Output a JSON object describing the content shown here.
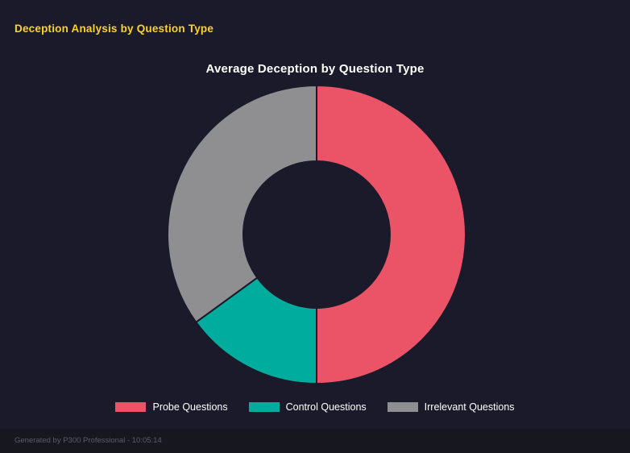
{
  "header": {
    "title": "Deception Analysis by Question Type"
  },
  "chart_data": {
    "type": "pie",
    "variant": "donut",
    "title": "Average Deception by Question Type",
    "labels": [
      "Probe Questions",
      "Control Questions",
      "Irrelevant Questions"
    ],
    "values": [
      50,
      15,
      35
    ],
    "unit": "%",
    "colors": [
      "#ea5466",
      "#00ac9e",
      "#8f8f92"
    ],
    "border_color": "#1a1a2a",
    "hole_radius_ratio": 0.49,
    "start_angle_deg": 0,
    "direction": "clockwise",
    "legend_position": "bottom"
  },
  "footer": {
    "text": "Generated by P300 Professional - 10:05:14"
  },
  "theme": {
    "background": "#1a1a2a",
    "header_yellow": "#fcd32b",
    "chart_title_color": "#ffffff",
    "legend_text_color": "#ffffff",
    "footer_text_color": "#5c5c68",
    "footer_bar_color": "#17171f"
  }
}
